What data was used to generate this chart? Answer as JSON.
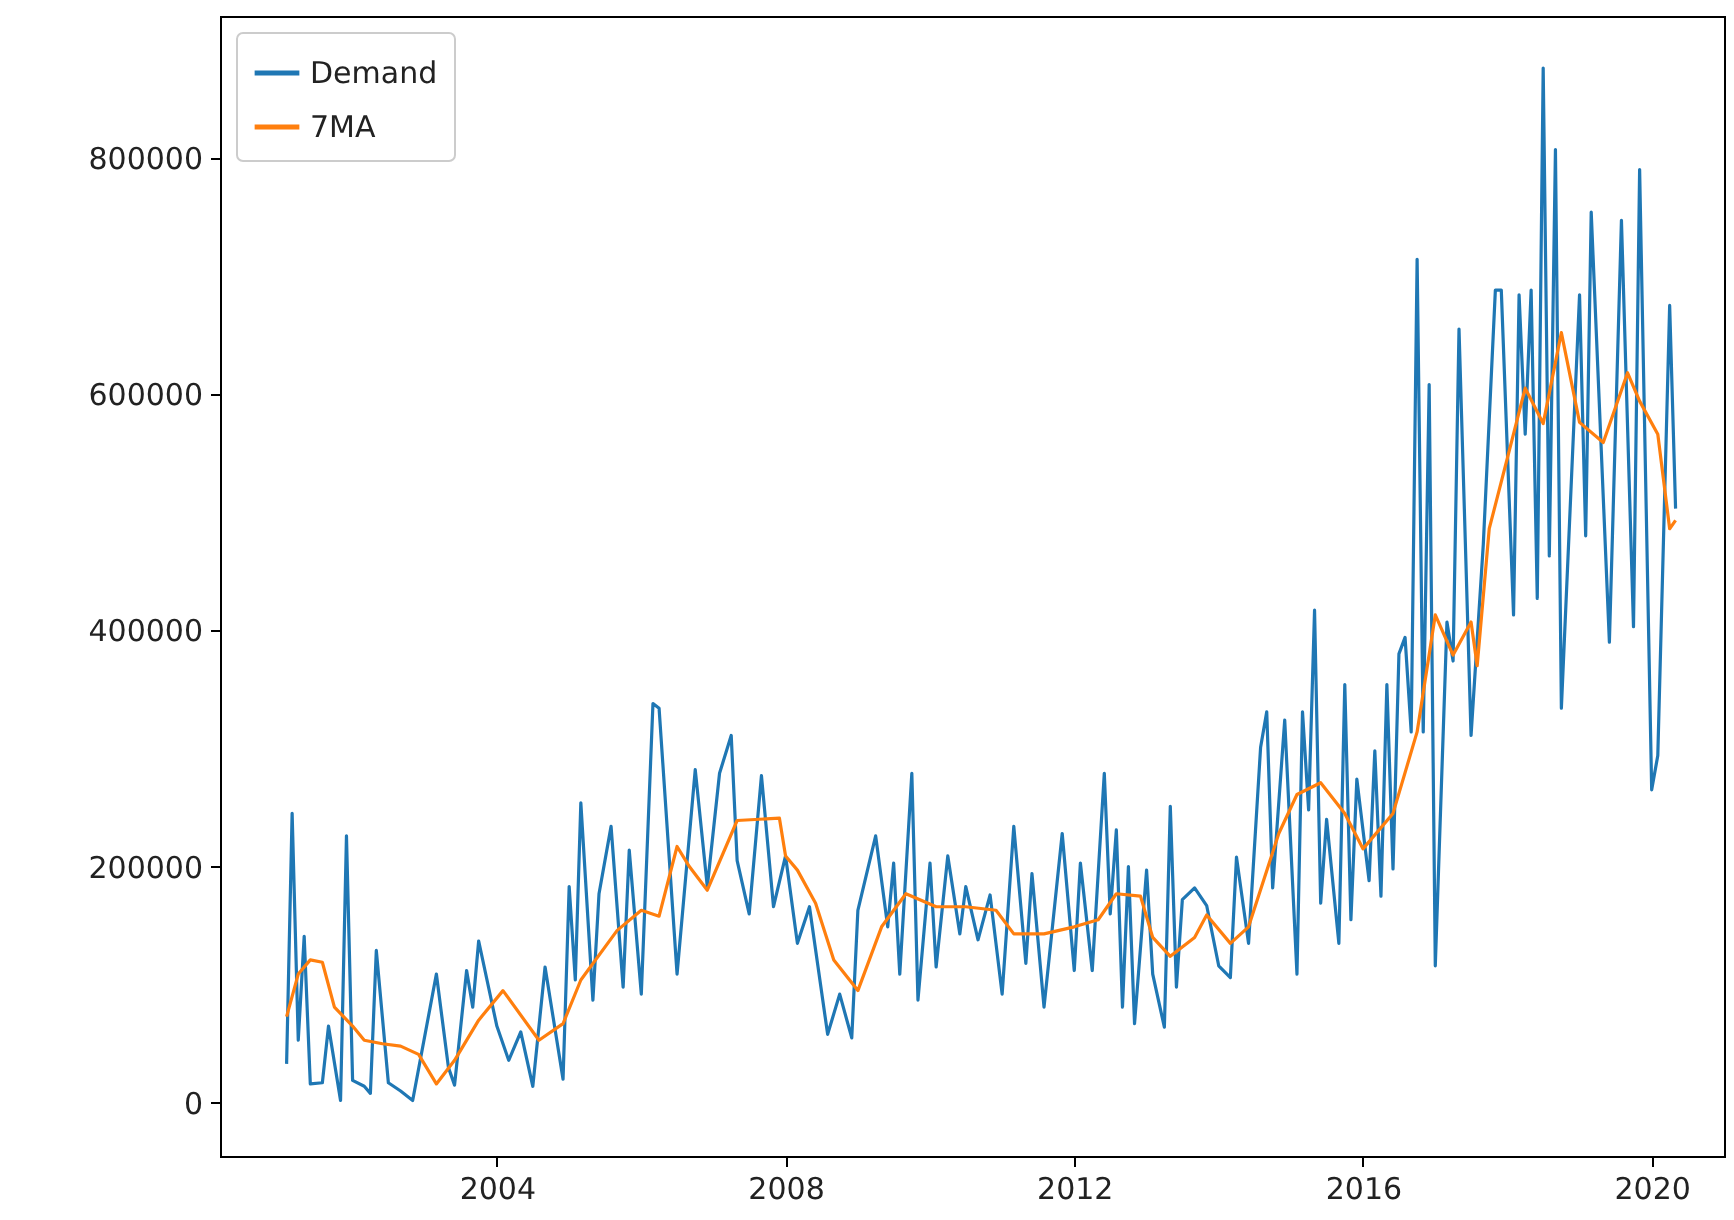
{
  "chart_data": {
    "type": "line",
    "legend": "top left",
    "grid": false,
    "marker": "none",
    "line_style": "solid",
    "xlim": [
      "2000-03",
      "2021-01"
    ],
    "xticks": [
      "2004",
      "2008",
      "2012",
      "2016",
      "2020"
    ],
    "ylim": [
      -45000,
      920000
    ],
    "yticks": [
      0,
      200000,
      400000,
      600000,
      800000
    ],
    "series": [
      {
        "name": "Demand",
        "color": "#1f77b4",
        "x": [
          "2001-02",
          "2001-03",
          "2001-04",
          "2001-05",
          "2001-06",
          "2001-08",
          "2001-09",
          "2001-11",
          "2001-12",
          "2002-01",
          "2002-03",
          "2002-04",
          "2002-05",
          "2002-07",
          "2002-09",
          "2002-11",
          "2003-03",
          "2003-05",
          "2003-06",
          "2003-08",
          "2003-09",
          "2003-10",
          "2004-01",
          "2004-03",
          "2004-05",
          "2004-07",
          "2004-09",
          "2004-12",
          "2005-01",
          "2005-02",
          "2005-03",
          "2005-05",
          "2005-06",
          "2005-08",
          "2005-10",
          "2005-11",
          "2006-01",
          "2006-03",
          "2006-04",
          "2006-07",
          "2006-10",
          "2006-12",
          "2007-02",
          "2007-04",
          "2007-05",
          "2007-07",
          "2007-09",
          "2007-11",
          "2008-01",
          "2008-03",
          "2008-05",
          "2008-08",
          "2008-10",
          "2008-12",
          "2009-01",
          "2009-04",
          "2009-06",
          "2009-07",
          "2009-08",
          "2009-10",
          "2009-11",
          "2010-01",
          "2010-02",
          "2010-04",
          "2010-06",
          "2010-07",
          "2010-09",
          "2010-11",
          "2011-01",
          "2011-03",
          "2011-05",
          "2011-06",
          "2011-08",
          "2011-11",
          "2012-01",
          "2012-02",
          "2012-04",
          "2012-06",
          "2012-07",
          "2012-08",
          "2012-09",
          "2012-10",
          "2012-11",
          "2013-01",
          "2013-02",
          "2013-04",
          "2013-05",
          "2013-06",
          "2013-07",
          "2013-09",
          "2013-11",
          "2014-01",
          "2014-03",
          "2014-04",
          "2014-06",
          "2014-08",
          "2014-09",
          "2014-10",
          "2014-12",
          "2015-02",
          "2015-03",
          "2015-04",
          "2015-05",
          "2015-06",
          "2015-07",
          "2015-09",
          "2015-10",
          "2015-11",
          "2015-12",
          "2016-02",
          "2016-03",
          "2016-04",
          "2016-05",
          "2016-06",
          "2016-07",
          "2016-08",
          "2016-09",
          "2016-10",
          "2016-11",
          "2016-12",
          "2017-01",
          "2017-03",
          "2017-04",
          "2017-05",
          "2017-07",
          "2017-09",
          "2017-11",
          "2017-12",
          "2018-02",
          "2018-03",
          "2018-04",
          "2018-05",
          "2018-06",
          "2018-07",
          "2018-08",
          "2018-09",
          "2018-10",
          "2019-01",
          "2019-02",
          "2019-03",
          "2019-06",
          "2019-08",
          "2019-10",
          "2019-11",
          "2020-01",
          "2020-02",
          "2020-04",
          "2020-05"
        ],
        "values": [
          33000,
          245000,
          53000,
          141000,
          16000,
          17000,
          65000,
          2000,
          226000,
          19000,
          14000,
          8000,
          129000,
          17000,
          10000,
          2000,
          109000,
          30000,
          15000,
          112000,
          81000,
          137000,
          65000,
          36000,
          60000,
          14000,
          115000,
          20000,
          183000,
          104000,
          254000,
          87000,
          177000,
          234000,
          98000,
          214000,
          92000,
          338000,
          334000,
          109000,
          282000,
          183000,
          279000,
          311000,
          205000,
          160000,
          277000,
          166000,
          209000,
          135000,
          166000,
          58000,
          92000,
          55000,
          163000,
          226000,
          149000,
          203000,
          109000,
          279000,
          87000,
          203000,
          115000,
          209000,
          143000,
          183000,
          138000,
          176000,
          92000,
          234000,
          118000,
          194000,
          81000,
          228000,
          112000,
          203000,
          112000,
          279000,
          160000,
          231000,
          81000,
          200000,
          67000,
          197000,
          109000,
          64000,
          251000,
          98000,
          172000,
          182000,
          167000,
          116000,
          106000,
          208000,
          135000,
          301000,
          331000,
          182000,
          324000,
          109000,
          331000,
          248000,
          417000,
          169000,
          240000,
          135000,
          354000,
          155000,
          274000,
          188000,
          298000,
          175000,
          354000,
          198000,
          380000,
          394000,
          314000,
          714000,
          314000,
          608000,
          116000,
          407000,
          374000,
          655000,
          311000,
          473000,
          688000,
          688000,
          413000,
          684000,
          566000,
          688000,
          427000,
          876000,
          463000,
          807000,
          334000,
          684000,
          480000,
          754000,
          390000,
          747000,
          403000,
          790000,
          265000,
          294000,
          675000,
          503000
        ]
      },
      {
        "name": "7MA",
        "color": "#ff7f0e",
        "x": [
          "2001-02",
          "2001-04",
          "2001-06",
          "2001-08",
          "2001-10",
          "2002-01",
          "2002-03",
          "2002-06",
          "2002-09",
          "2002-12",
          "2003-03",
          "2003-06",
          "2003-10",
          "2004-02",
          "2004-08",
          "2004-12",
          "2005-03",
          "2005-09",
          "2006-01",
          "2006-04",
          "2006-07",
          "2006-09",
          "2006-12",
          "2007-05",
          "2007-12",
          "2008-01",
          "2008-03",
          "2008-06",
          "2008-09",
          "2009-01",
          "2009-05",
          "2009-09",
          "2010-02",
          "2010-07",
          "2010-12",
          "2011-03",
          "2011-08",
          "2012-01",
          "2012-05",
          "2012-08",
          "2012-12",
          "2013-02",
          "2013-05",
          "2013-09",
          "2013-11",
          "2014-03",
          "2014-06",
          "2014-11",
          "2015-02",
          "2015-06",
          "2015-10",
          "2016-01",
          "2016-06",
          "2016-10",
          "2017-01",
          "2017-04",
          "2017-07",
          "2017-08",
          "2017-10",
          "2018-01",
          "2018-04",
          "2018-07",
          "2018-10",
          "2019-01",
          "2019-05",
          "2019-09",
          "2019-11",
          "2020-02",
          "2020-04",
          "2020-05"
        ],
        "values": [
          73000,
          109000,
          121000,
          119000,
          81000,
          65000,
          53000,
          50000,
          48000,
          41000,
          16000,
          36000,
          70000,
          95000,
          53000,
          67000,
          104000,
          146000,
          163000,
          158000,
          217000,
          200000,
          180000,
          239000,
          241000,
          209000,
          197000,
          169000,
          121000,
          95000,
          149000,
          177000,
          166000,
          166000,
          163000,
          143000,
          143000,
          149000,
          155000,
          177000,
          175000,
          140000,
          124000,
          140000,
          159000,
          135000,
          149000,
          228000,
          261000,
          271000,
          245000,
          215000,
          245000,
          314000,
          413000,
          379000,
          407000,
          370000,
          486000,
          546000,
          605000,
          575000,
          652000,
          576000,
          559000,
          618000,
          594000,
          566000,
          486000,
          493000
        ]
      }
    ]
  }
}
